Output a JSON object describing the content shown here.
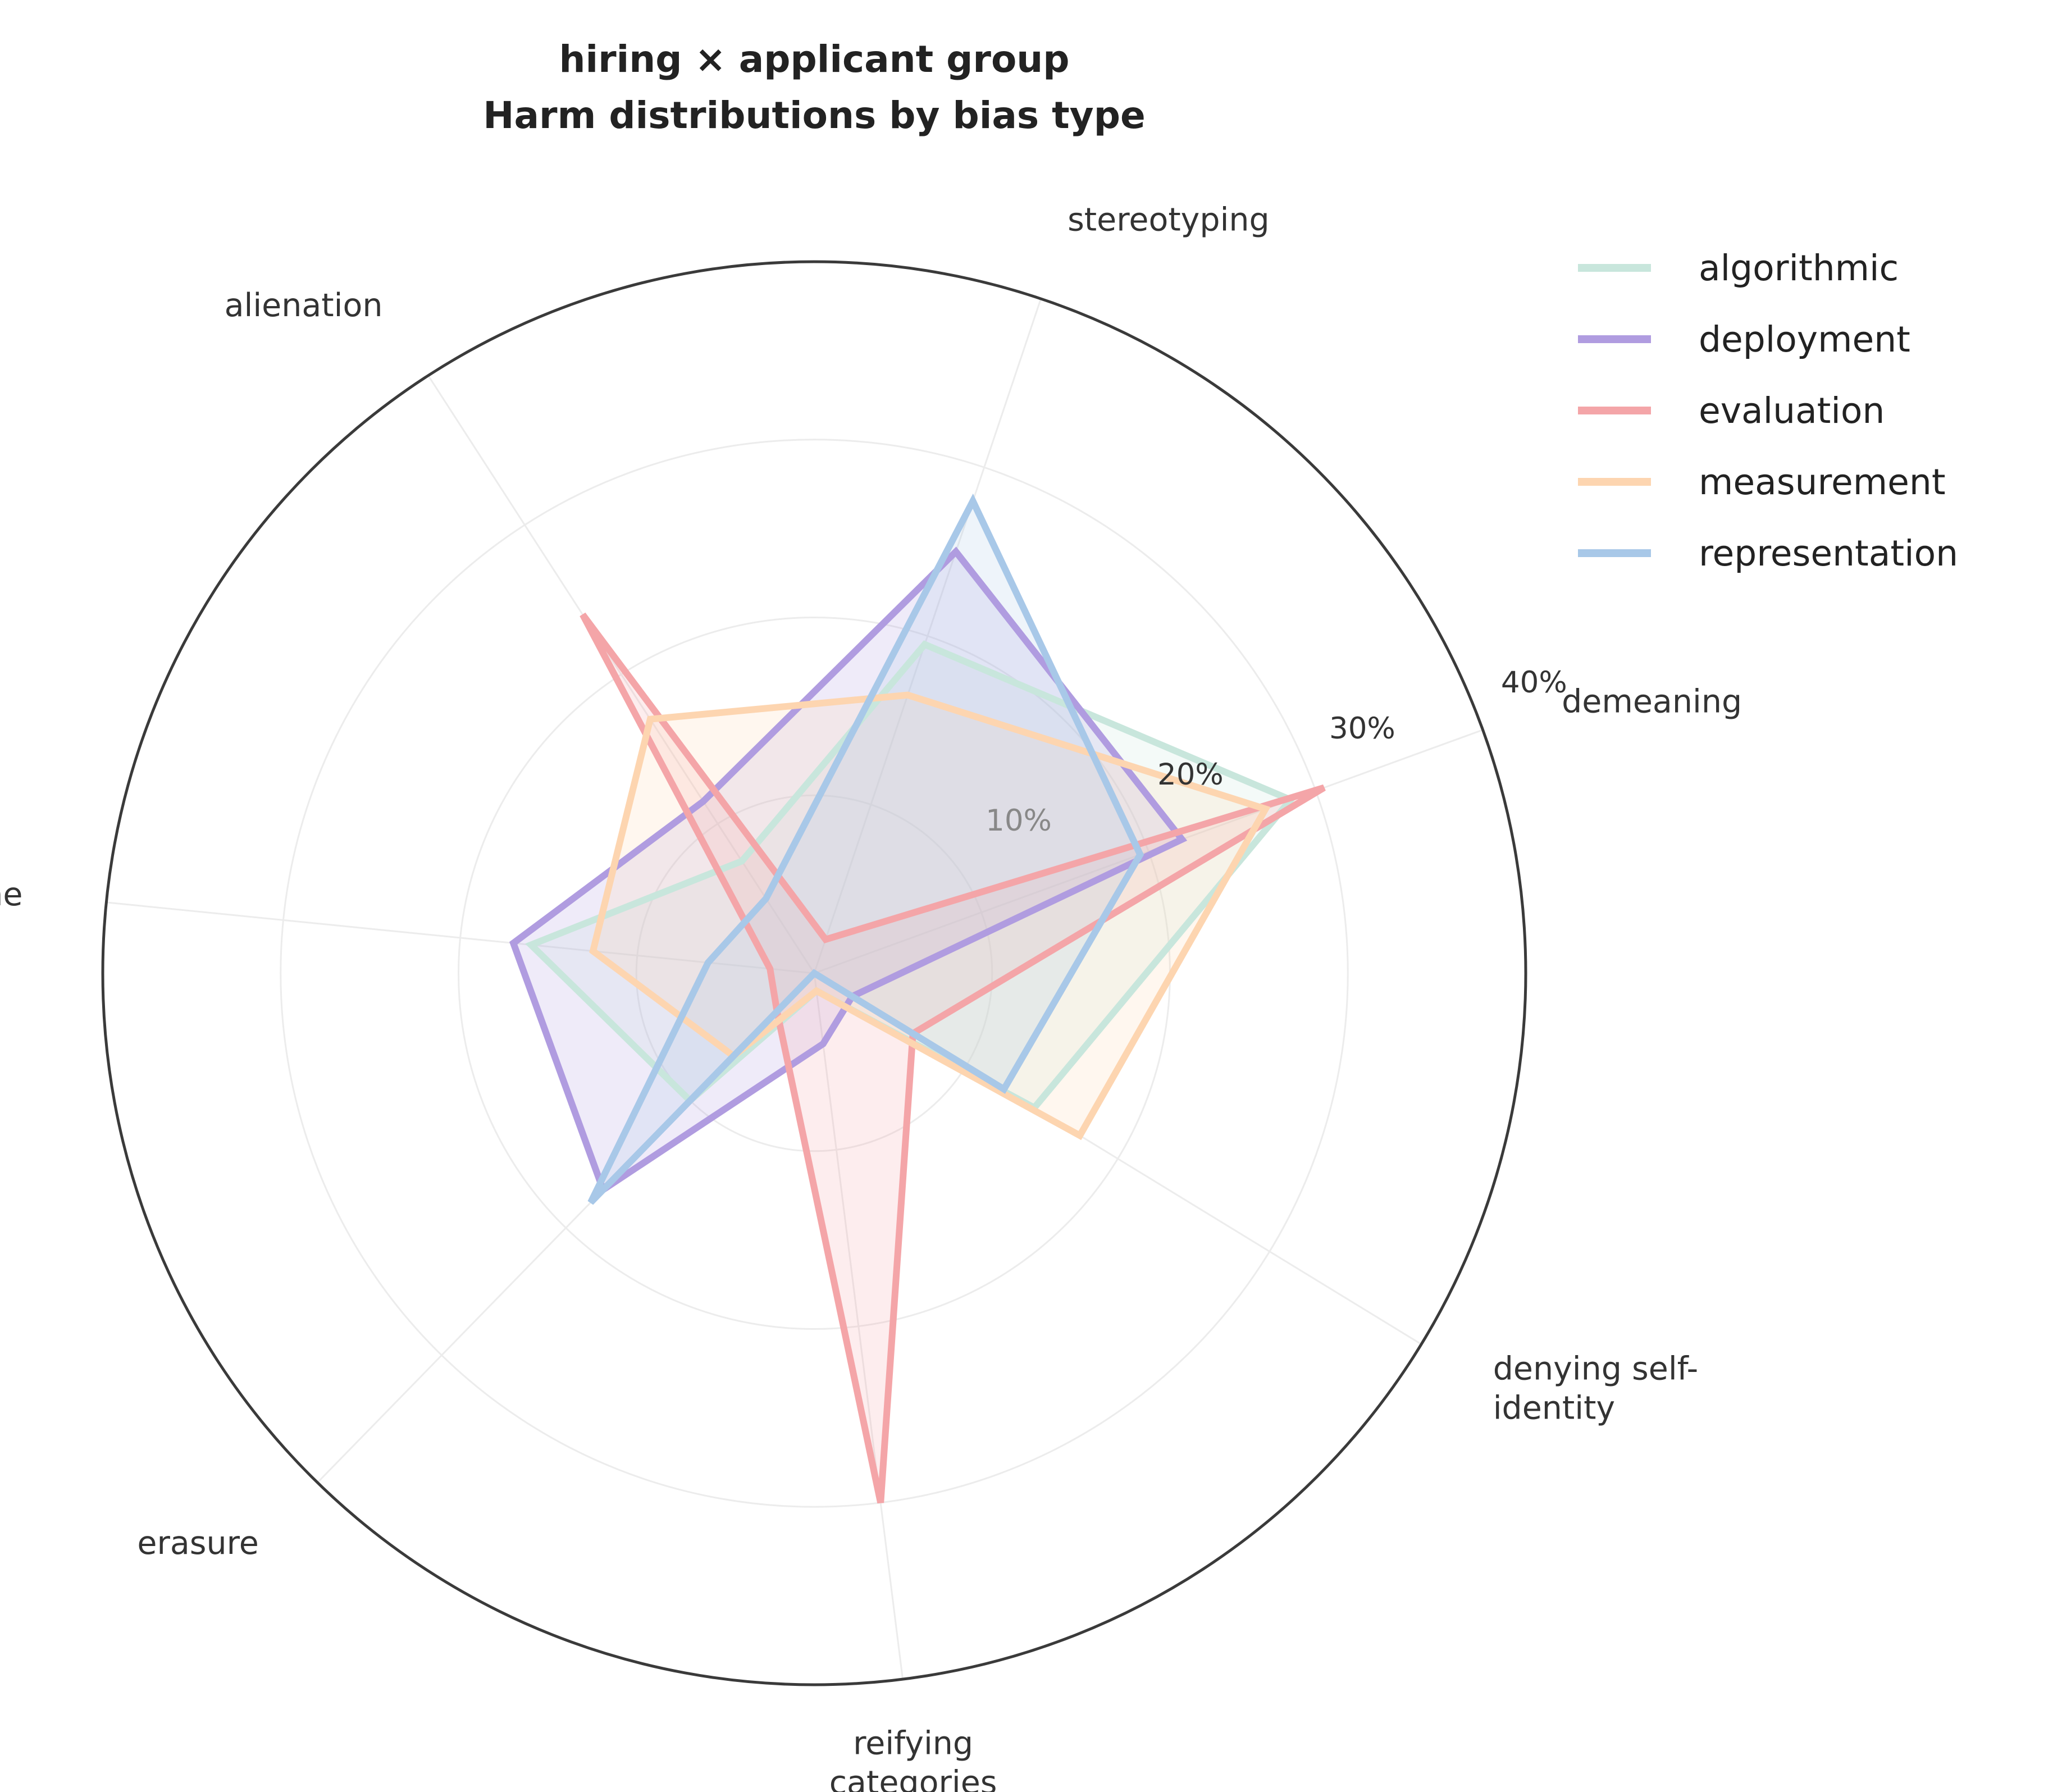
{
  "chart_data": {
    "type": "radar",
    "title": [
      "hiring × applicant group",
      "Harm distributions by bias type"
    ],
    "categories": [
      "demeaning",
      "stereotyping",
      "alienation",
      "none",
      "erasure",
      "reifying categories",
      "denying self-identity"
    ],
    "category_display": [
      [
        "demeaning"
      ],
      [
        "stereotyping"
      ],
      [
        "alienation"
      ],
      [
        "none"
      ],
      [
        "erasure"
      ],
      [
        "reifying",
        "categories"
      ],
      [
        "denying self-",
        "identity"
      ]
    ],
    "rlim": [
      0,
      40
    ],
    "r_ticks": [
      10,
      20,
      30,
      40
    ],
    "r_tick_labels": [
      "10%",
      "20%",
      "30%",
      "40%"
    ],
    "grid": true,
    "legend_position": "top-right",
    "series": [
      {
        "name": "algorithmic",
        "color": "#c8e6dc",
        "values": [
          28.5,
          19.5,
          7.5,
          16.0,
          10.0,
          1.0,
          14.5
        ]
      },
      {
        "name": "deployment",
        "color": "#b09ce0",
        "values": [
          22.0,
          25.0,
          11.5,
          17.0,
          17.0,
          4.0,
          2.5
        ]
      },
      {
        "name": "evaluation",
        "color": "#f4a5a8",
        "values": [
          30.5,
          2.0,
          24.0,
          2.5,
          3.0,
          30.0,
          6.5
        ]
      },
      {
        "name": "measurement",
        "color": "#fdd5b0",
        "values": [
          27.0,
          16.5,
          17.0,
          12.5,
          6.5,
          1.0,
          17.5
        ]
      },
      {
        "name": "representation",
        "color": "#a8c8e8",
        "values": [
          19.5,
          28.0,
          5.0,
          6.0,
          18.0,
          0.0,
          12.5
        ]
      }
    ]
  }
}
